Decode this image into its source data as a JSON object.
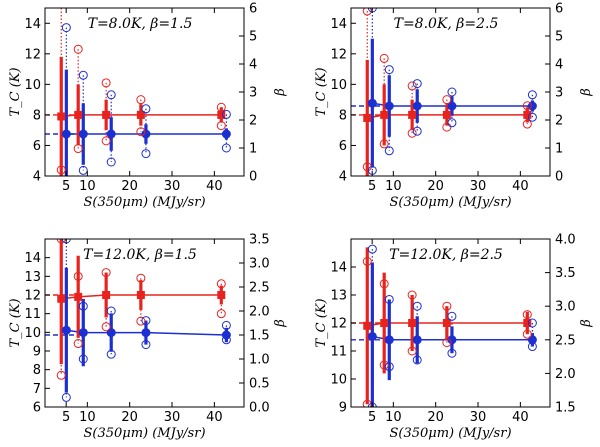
{
  "colors": {
    "red": "#e8231d",
    "blue": "#1c2fd0",
    "axis": "#000000"
  },
  "chart_data": [
    {
      "type": "scatter",
      "title_left": "T=8.0K,",
      "title_right": "β=1.5",
      "xlabel": "S(350μm) (MJy/sr)",
      "ylabel_left": "T_C (K)",
      "ylabel_right": "β",
      "xlim": [
        0,
        47
      ],
      "ylim_left": [
        4,
        15
      ],
      "ylim_right": [
        0,
        6
      ],
      "xticks": [
        "10",
        "20",
        "30",
        "40"
      ],
      "xtick_minor": [
        5
      ],
      "xtick_labels": [
        "5",
        "10",
        "20",
        "30",
        "40"
      ],
      "yticks_left": [
        "4",
        "6",
        "8",
        "10",
        "12",
        "14"
      ],
      "yticks_right": [
        "0",
        "1",
        "2",
        "3",
        "4",
        "5",
        "6"
      ],
      "true_T": 8.0,
      "true_beta": 1.5,
      "x": [
        4.2,
        8.2,
        14.8,
        23.0,
        42.0
      ],
      "T_values": [
        7.9,
        8.0,
        8.0,
        8.0,
        8.0
      ],
      "T_err": [
        3.9,
        2.0,
        1.0,
        0.7,
        0.5
      ],
      "T_outliers_hi": [
        null,
        12.3,
        10.1,
        9.0,
        8.5
      ],
      "T_outliers_lo": [
        4.4,
        5.8,
        6.3,
        6.9,
        7.3
      ],
      "beta_values": [
        1.5,
        1.5,
        1.5,
        1.5,
        1.5
      ],
      "beta_err": [
        2.3,
        1.1,
        0.6,
        0.35,
        0.2
      ],
      "beta_outliers_hi": [
        5.3,
        3.6,
        2.9,
        2.4,
        2.2
      ],
      "beta_outliers_lo": [
        null,
        0.2,
        0.5,
        0.8,
        1.0
      ]
    },
    {
      "type": "scatter",
      "title_left": "T=8.0K,",
      "title_right": "β=2.5",
      "xlabel": "S(350μm) (MJy/sr)",
      "ylabel_left": "T_C (K)",
      "ylabel_right": "β",
      "xlim": [
        0,
        47
      ],
      "ylim_left": [
        4,
        15
      ],
      "ylim_right": [
        0,
        6
      ],
      "xticks": [
        "10",
        "20",
        "30",
        "40"
      ],
      "xtick_labels": [
        "5",
        "10",
        "20",
        "30",
        "40"
      ],
      "yticks_left": [
        "4",
        "6",
        "8",
        "10",
        "12",
        "14"
      ],
      "yticks_right": [
        "0",
        "1",
        "2",
        "3",
        "4",
        "5",
        "6"
      ],
      "true_T": 8.0,
      "true_beta": 2.5,
      "x": [
        4.2,
        8.2,
        14.8,
        23.0,
        42.0
      ],
      "T_values": [
        7.8,
        8.0,
        8.0,
        8.0,
        8.0
      ],
      "T_err": [
        3.8,
        2.0,
        1.0,
        0.7,
        0.5
      ],
      "T_outliers_hi": [
        14.8,
        11.7,
        9.9,
        9.0,
        8.6
      ],
      "T_outliers_lo": [
        4.6,
        6.1,
        6.8,
        7.2,
        7.4
      ],
      "beta_values": [
        2.6,
        2.5,
        2.5,
        2.5,
        2.5
      ],
      "beta_err": [
        2.3,
        1.1,
        0.6,
        0.35,
        0.2
      ],
      "beta_outliers_hi": [
        6.0,
        3.8,
        3.3,
        3.0,
        2.9
      ],
      "beta_outliers_lo": [
        0.2,
        0.9,
        1.6,
        1.9,
        2.1
      ]
    },
    {
      "type": "scatter",
      "title_left": "T=12.0K,",
      "title_right": "β=1.5",
      "xlabel": "S(350μm) (MJy/sr)",
      "ylabel_left": "T_C (K)",
      "ylabel_right": "β",
      "xlim": [
        0,
        47
      ],
      "ylim_left": [
        6,
        15
      ],
      "ylim_right": [
        0,
        3.5
      ],
      "xticks": [
        "10",
        "20",
        "30",
        "40"
      ],
      "xtick_labels": [
        "5",
        "10",
        "20",
        "30",
        "40"
      ],
      "yticks_left": [
        "6",
        "7",
        "8",
        "9",
        "10",
        "11",
        "12",
        "13",
        "14"
      ],
      "yticks_right": [
        "0.0",
        "0.5",
        "1.0",
        "1.5",
        "2.0",
        "2.5",
        "3.0",
        "3.5"
      ],
      "true_T": 12.0,
      "true_beta": 1.5,
      "x": [
        4.2,
        8.2,
        14.8,
        23.0,
        42.0
      ],
      "T_values": [
        11.8,
        11.9,
        12.0,
        12.0,
        12.0
      ],
      "T_err": [
        3.5,
        2.2,
        1.2,
        0.8,
        0.5
      ],
      "T_outliers_hi": [
        15.0,
        13.0,
        13.2,
        12.9,
        12.6
      ],
      "T_outliers_lo": [
        7.7,
        9.4,
        10.3,
        10.6,
        11.0
      ],
      "beta_values": [
        1.6,
        1.55,
        1.55,
        1.55,
        1.5
      ],
      "beta_err": [
        1.3,
        0.7,
        0.4,
        0.25,
        0.15
      ],
      "beta_outliers_hi": [
        3.5,
        2.1,
        2.0,
        1.8,
        1.7
      ],
      "beta_outliers_lo": [
        0.2,
        1.0,
        1.1,
        1.3,
        1.4
      ]
    },
    {
      "type": "scatter",
      "title_left": "T=12.0K,",
      "title_right": "β=2.5",
      "xlabel": "S(350μm) (MJy/sr)",
      "ylabel_left": "T_C (K)",
      "ylabel_right": "β",
      "xlim": [
        0,
        47
      ],
      "ylim_left": [
        9,
        15
      ],
      "ylim_right": [
        1.5,
        4.0
      ],
      "xticks": [
        "10",
        "20",
        "30",
        "40"
      ],
      "xtick_labels": [
        "5",
        "10",
        "20",
        "30",
        "40"
      ],
      "yticks_left": [
        "9",
        "10",
        "11",
        "12",
        "13",
        "14"
      ],
      "yticks_right": [
        "1.5",
        "2.0",
        "2.5",
        "3.0",
        "3.5",
        "4.0"
      ],
      "true_T": 12.0,
      "true_beta": 2.5,
      "x": [
        4.2,
        8.2,
        14.8,
        23.0,
        42.0
      ],
      "T_values": [
        11.9,
        12.0,
        12.0,
        12.0,
        12.0
      ],
      "T_err": [
        2.8,
        1.8,
        1.0,
        0.6,
        0.4
      ],
      "T_outliers_hi": [
        14.2,
        13.4,
        13.0,
        12.6,
        12.3
      ],
      "T_outliers_lo": [
        9.1,
        10.5,
        11.0,
        11.3,
        11.6
      ],
      "beta_values": [
        2.55,
        2.5,
        2.5,
        2.5,
        2.5
      ],
      "beta_err": [
        1.1,
        0.6,
        0.35,
        0.2,
        0.1
      ],
      "beta_outliers_hi": [
        3.85,
        3.1,
        3.0,
        2.85,
        2.75
      ],
      "beta_outliers_lo": [
        1.5,
        2.1,
        2.2,
        2.3,
        2.4
      ]
    }
  ]
}
